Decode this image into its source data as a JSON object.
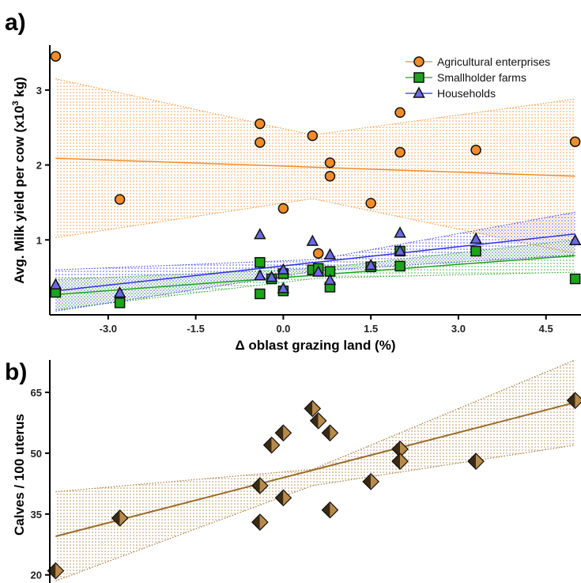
{
  "chart_data": [
    {
      "type": "scatter",
      "panel_label": "a)",
      "ylabel": "Avg. Milk yield per cow (x10",
      "ylabel_sup": "3",
      "ylabel_tail": " kg)",
      "x_ticks": [
        "-3.0",
        "-1.5",
        "0.0",
        "1.5",
        "3.0",
        "4.5"
      ],
      "xlim": [
        -4.0,
        5.1
      ],
      "ylim": [
        0,
        3.6
      ],
      "y_ticks": [
        "1",
        "2",
        "3"
      ],
      "grid": false,
      "legend_position": "top-right",
      "series": [
        {
          "name": "Agricultural enterprises",
          "marker": "circle",
          "color": "#f28c28",
          "line_color": "#f28c28",
          "points": [
            [
              -3.9,
              3.45
            ],
            [
              -2.8,
              1.54
            ],
            [
              -0.4,
              2.55
            ],
            [
              -0.4,
              2.3
            ],
            [
              0.0,
              1.42
            ],
            [
              0.5,
              2.39
            ],
            [
              0.6,
              0.82
            ],
            [
              0.8,
              2.03
            ],
            [
              0.8,
              1.85
            ],
            [
              1.5,
              1.49
            ],
            [
              2.0,
              2.7
            ],
            [
              2.0,
              2.17
            ],
            [
              3.3,
              2.2
            ],
            [
              5.0,
              2.31
            ]
          ],
          "fit": [
            [
              -3.9,
              2.09
            ],
            [
              5.0,
              1.85
            ]
          ],
          "ci_upper": [
            [
              -3.9,
              3.15
            ],
            [
              0.5,
              2.4
            ],
            [
              5.0,
              2.88
            ]
          ],
          "ci_lower": [
            [
              -3.9,
              1.03
            ],
            [
              0.5,
              1.55
            ],
            [
              5.0,
              0.82
            ]
          ]
        },
        {
          "name": "Smallholder farms",
          "marker": "square",
          "color": "#1aa51a",
          "line_color": "#1aa51a",
          "points": [
            [
              -3.9,
              0.3
            ],
            [
              -2.8,
              0.16
            ],
            [
              -0.4,
              0.7
            ],
            [
              -0.4,
              0.28
            ],
            [
              -0.2,
              0.48
            ],
            [
              0.0,
              0.55
            ],
            [
              0.0,
              0.32
            ],
            [
              0.5,
              0.6
            ],
            [
              0.6,
              0.62
            ],
            [
              0.8,
              0.58
            ],
            [
              0.8,
              0.37
            ],
            [
              1.5,
              0.64
            ],
            [
              2.0,
              0.85
            ],
            [
              2.0,
              0.65
            ],
            [
              3.3,
              0.85
            ],
            [
              5.0,
              0.48
            ]
          ],
          "fit": [
            [
              -3.9,
              0.27
            ],
            [
              5.0,
              0.79
            ]
          ],
          "ci_upper": [
            [
              -3.9,
              0.47
            ],
            [
              0.6,
              0.62
            ],
            [
              5.0,
              1.0
            ]
          ],
          "ci_lower": [
            [
              -3.9,
              0.07
            ],
            [
              0.6,
              0.49
            ],
            [
              5.0,
              0.57
            ]
          ]
        },
        {
          "name": "Households",
          "marker": "triangle",
          "color": "#6a6ae8",
          "line_color": "#3030e0",
          "points": [
            [
              -3.9,
              0.4
            ],
            [
              -2.8,
              0.29
            ],
            [
              -0.4,
              1.07
            ],
            [
              -0.4,
              0.52
            ],
            [
              -0.2,
              0.5
            ],
            [
              0.0,
              0.6
            ],
            [
              0.0,
              0.35
            ],
            [
              0.5,
              0.98
            ],
            [
              0.6,
              0.57
            ],
            [
              0.8,
              0.8
            ],
            [
              0.8,
              0.46
            ],
            [
              1.5,
              0.66
            ],
            [
              2.0,
              1.09
            ],
            [
              2.0,
              0.85
            ],
            [
              3.3,
              1.01
            ],
            [
              5.0,
              0.99
            ]
          ],
          "fit": [
            [
              -3.9,
              0.32
            ],
            [
              5.0,
              1.08
            ]
          ],
          "ci_upper": [
            [
              -3.9,
              0.6
            ],
            [
              0.6,
              0.74
            ],
            [
              5.0,
              1.37
            ]
          ],
          "ci_lower": [
            [
              -3.9,
              0.05
            ],
            [
              0.6,
              0.59
            ],
            [
              5.0,
              0.8
            ]
          ]
        }
      ],
      "xlabel": "Δ oblast grazing land (%)"
    },
    {
      "type": "scatter",
      "panel_label": "b)",
      "ylabel": "Calves / 100 uterus",
      "xlim": [
        -4.0,
        5.1
      ],
      "ylim": [
        18,
        73
      ],
      "y_ticks": [
        "20",
        "35",
        "50",
        "65"
      ],
      "grid": false,
      "series": [
        {
          "marker": "diamond",
          "color_dark": "#3a2a12",
          "color_light": "#b88a4a",
          "line_color": "#9a6c2a",
          "points": [
            [
              -3.9,
              21
            ],
            [
              -2.8,
              34
            ],
            [
              -0.4,
              42
            ],
            [
              -0.4,
              33
            ],
            [
              -0.2,
              52
            ],
            [
              0.0,
              55
            ],
            [
              0.0,
              39
            ],
            [
              0.5,
              61
            ],
            [
              0.6,
              58
            ],
            [
              0.8,
              55
            ],
            [
              0.8,
              36
            ],
            [
              1.5,
              43
            ],
            [
              2.0,
              51
            ],
            [
              2.0,
              48
            ],
            [
              3.3,
              48
            ],
            [
              5.0,
              63
            ]
          ],
          "fit": [
            [
              -3.9,
              29.5
            ],
            [
              5.0,
              62.5
            ]
          ],
          "ci_upper": [
            [
              -3.9,
              40.5
            ],
            [
              0.5,
              46
            ],
            [
              5.0,
              73
            ]
          ],
          "ci_lower": [
            [
              -3.9,
              18.5
            ],
            [
              0.5,
              42
            ],
            [
              5.0,
              52
            ]
          ]
        }
      ]
    }
  ]
}
